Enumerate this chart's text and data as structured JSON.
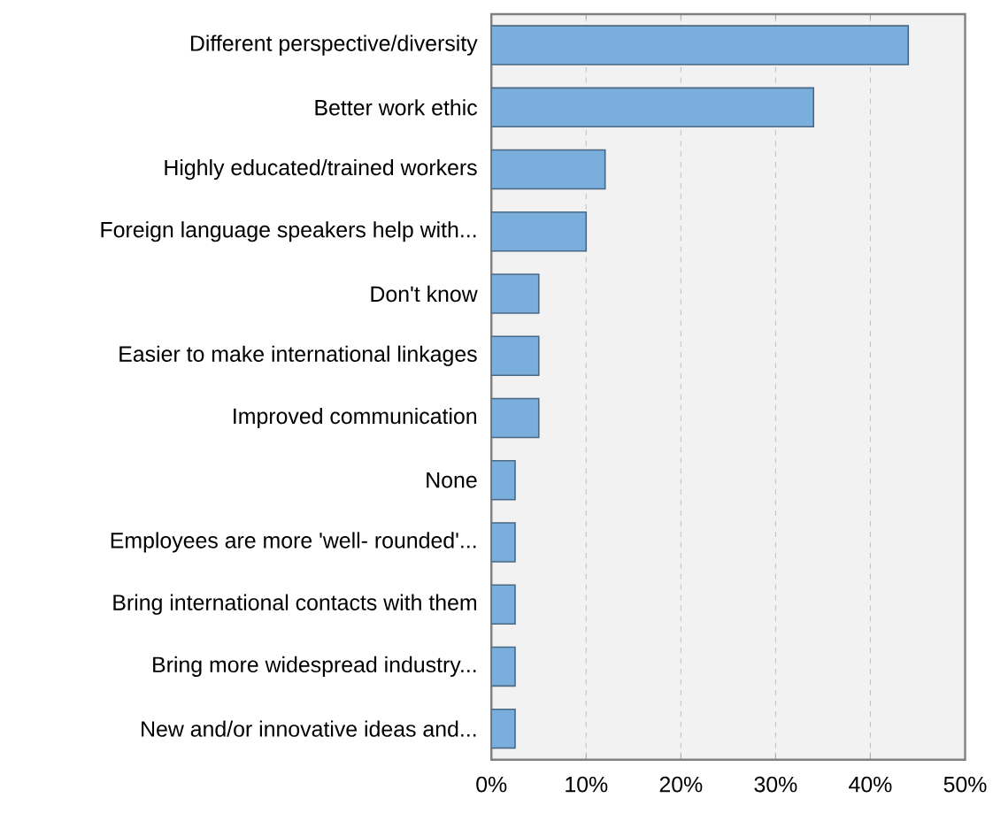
{
  "chart_data": {
    "type": "bar",
    "orientation": "horizontal",
    "categories": [
      "Different perspective/diversity",
      "Better work ethic",
      "Highly educated/trained workers",
      "Foreign language speakers help with...",
      "Don't know",
      "Easier to make international linkages",
      "Improved communication",
      "None",
      "Employees are more 'well- rounded'...",
      "Bring international contacts with them",
      "Bring more widespread industry...",
      "New and/or innovative ideas and..."
    ],
    "values": [
      44,
      34,
      12,
      10,
      5,
      5,
      5,
      2.5,
      2.5,
      2.5,
      2.5,
      2.5
    ],
    "color": "#7aaedc",
    "xlim": [
      0,
      50
    ],
    "xticks": [
      {
        "value": 0,
        "label": "0%"
      },
      {
        "value": 10,
        "label": "10%"
      },
      {
        "value": 20,
        "label": "20%"
      },
      {
        "value": 30,
        "label": "30%"
      },
      {
        "value": 40,
        "label": "40%"
      },
      {
        "value": 50,
        "label": "50%"
      }
    ],
    "grid": "x"
  }
}
